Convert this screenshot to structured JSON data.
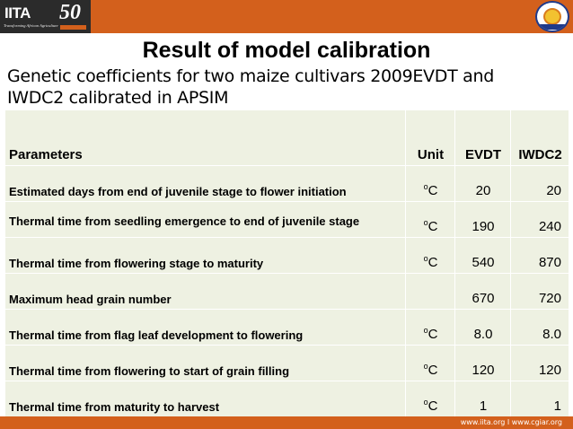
{
  "header": {
    "logo_text": "IITA",
    "logo_tagline": "Transforming African Agriculture",
    "logo_anniversary": "50"
  },
  "title": "Result of model calibration",
  "subtitle": "Genetic coefficients for two maize cultivars 2009EVDT and IWDC2 calibrated in APSIM",
  "table": {
    "headers": {
      "parameters": "Parameters",
      "unit": "Unit",
      "evdt": "EVDT",
      "iwdc2": "IWDC2"
    },
    "rows": [
      {
        "parameter": "Estimated days from end of juvenile stage to flower initiation",
        "unit_sup": "o",
        "unit": "C",
        "evdt": "20",
        "iwdc2": "20"
      },
      {
        "parameter": "Thermal time from seedling emergence to end of juvenile stage",
        "unit_sup": "o",
        "unit": "C",
        "evdt": "190",
        "iwdc2": "240"
      },
      {
        "parameter": "Thermal time from flowering stage to maturity",
        "unit_sup": "o",
        "unit": "C",
        "evdt": "540",
        "iwdc2": "870"
      },
      {
        "parameter": "Maximum head grain number",
        "unit_sup": "",
        "unit": "",
        "evdt": "670",
        "iwdc2": "720"
      },
      {
        "parameter": "Thermal time from flag leaf development to flowering",
        "unit_sup": "o",
        "unit": "C",
        "evdt": "8.0",
        "iwdc2": "8.0"
      },
      {
        "parameter": "Thermal time from flowering to start of grain filling",
        "unit_sup": "o",
        "unit": "C",
        "evdt": "120",
        "iwdc2": "120"
      },
      {
        "parameter": "Thermal time from maturity to harvest",
        "unit_sup": "o",
        "unit": "C",
        "evdt": "1",
        "iwdc2": "1"
      }
    ]
  },
  "footer": {
    "links": "www.iita.org  I  www.cgiar.org"
  },
  "colors": {
    "brand_orange": "#d3601c",
    "table_fill": "#eef1e2"
  }
}
